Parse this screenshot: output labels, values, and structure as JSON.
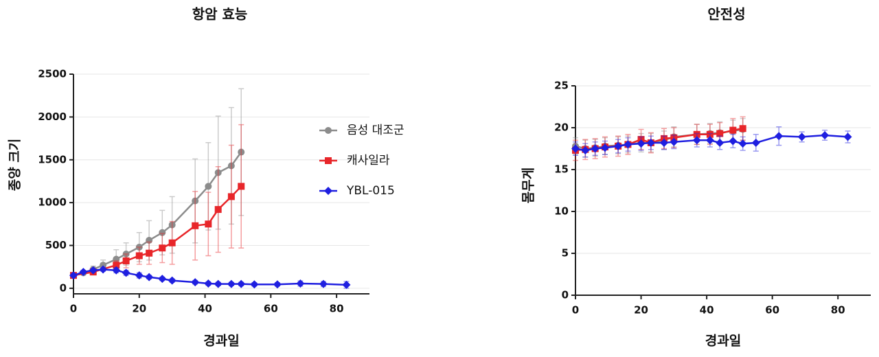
{
  "chart_data": [
    {
      "type": "line",
      "title": "항암 효능",
      "x_label": "경과일",
      "y_label": "종양 크기",
      "xlim": [
        0,
        90
      ],
      "xticks": [
        0,
        20,
        40,
        60,
        80
      ],
      "ylim": [
        -65,
        2500
      ],
      "yticks": [
        0,
        500,
        1000,
        1500,
        2000,
        2500
      ],
      "grid": true,
      "legend": "right",
      "series": [
        {
          "name": "음성 대조군",
          "color": "#8c8c8c",
          "marker": "circle",
          "x": [
            0,
            3,
            6,
            9,
            13,
            16,
            20,
            23,
            27,
            30,
            37,
            41,
            44,
            48,
            51
          ],
          "values": [
            150,
            180,
            220,
            270,
            340,
            400,
            480,
            560,
            650,
            740,
            1020,
            1190,
            1350,
            1430,
            1590
          ],
          "errors": [
            10,
            20,
            40,
            60,
            110,
            130,
            170,
            230,
            260,
            330,
            490,
            510,
            660,
            680,
            740
          ]
        },
        {
          "name": "캐사일라",
          "color": "#e8262a",
          "marker": "square",
          "x": [
            0,
            6,
            13,
            16,
            20,
            23,
            27,
            30,
            37,
            41,
            44,
            48,
            51
          ],
          "values": [
            150,
            190,
            270,
            320,
            380,
            410,
            470,
            530,
            730,
            750,
            920,
            1070,
            1190
          ],
          "errors": [
            10,
            20,
            50,
            80,
            100,
            130,
            170,
            250,
            400,
            370,
            500,
            600,
            720
          ]
        },
        {
          "name": "YBL-015",
          "color": "#1f1fe0",
          "marker": "diamond",
          "x": [
            0,
            3,
            6,
            9,
            13,
            16,
            20,
            23,
            27,
            30,
            37,
            41,
            44,
            48,
            51,
            55,
            62,
            69,
            76,
            83
          ],
          "values": [
            150,
            190,
            210,
            220,
            210,
            180,
            150,
            130,
            110,
            90,
            70,
            55,
            50,
            50,
            50,
            45,
            45,
            55,
            50,
            40
          ],
          "errors": [
            20,
            20,
            20,
            20,
            30,
            30,
            30,
            20,
            20,
            20,
            20,
            20,
            20,
            20,
            20,
            20,
            20,
            30,
            30,
            40
          ]
        }
      ]
    },
    {
      "type": "line",
      "title": "안전성",
      "x_label": "경과일",
      "y_label": "몸무게",
      "xlim": [
        0,
        90
      ],
      "xticks": [
        0,
        20,
        40,
        60,
        80
      ],
      "ylim": [
        0,
        25
      ],
      "yticks": [
        0,
        5,
        10,
        15,
        20,
        25
      ],
      "grid": true,
      "series": [
        {
          "color": "#8c8c8c",
          "marker": "circle",
          "x": [
            0,
            3,
            6,
            9,
            13,
            16,
            20,
            23,
            27,
            30,
            37,
            41,
            44,
            48,
            51
          ],
          "values": [
            17.8,
            17.5,
            17.6,
            17.8,
            17.9,
            18.0,
            18.2,
            18.2,
            18.5,
            18.9,
            19.2,
            19.3,
            19.4,
            19.6,
            19.8
          ],
          "errors": [
            1.0,
            1.0,
            1.0,
            1.0,
            1.0,
            1.0,
            1.1,
            1.1,
            1.1,
            1.2,
            1.2,
            1.2,
            1.3,
            1.3,
            1.3
          ]
        },
        {
          "color": "#e8262a",
          "marker": "square",
          "x": [
            0,
            3,
            6,
            9,
            13,
            16,
            20,
            23,
            27,
            30,
            37,
            41,
            44,
            48,
            51
          ],
          "values": [
            17.3,
            17.4,
            17.5,
            17.7,
            17.8,
            18.0,
            18.6,
            18.2,
            18.7,
            18.8,
            19.2,
            19.2,
            19.3,
            19.7,
            19.9
          ],
          "errors": [
            1.2,
            1.2,
            1.2,
            1.2,
            1.2,
            1.2,
            1.2,
            1.2,
            1.2,
            1.2,
            1.2,
            1.2,
            1.3,
            1.4,
            1.4
          ]
        },
        {
          "color": "#1f1fe0",
          "marker": "diamond",
          "x": [
            0,
            3,
            6,
            9,
            13,
            16,
            20,
            23,
            27,
            30,
            37,
            41,
            44,
            48,
            51,
            55,
            62,
            69,
            76,
            83
          ],
          "values": [
            17.5,
            17.3,
            17.5,
            17.6,
            17.8,
            18.0,
            18.1,
            18.2,
            18.2,
            18.3,
            18.5,
            18.5,
            18.2,
            18.4,
            18.1,
            18.2,
            19.0,
            18.9,
            19.1,
            18.9
          ],
          "errors": [
            0.8,
            0.8,
            0.8,
            0.8,
            0.8,
            0.8,
            0.8,
            0.8,
            0.8,
            0.8,
            0.8,
            0.8,
            0.8,
            0.8,
            0.8,
            1.0,
            1.1,
            0.6,
            0.6,
            0.7
          ]
        }
      ]
    }
  ]
}
